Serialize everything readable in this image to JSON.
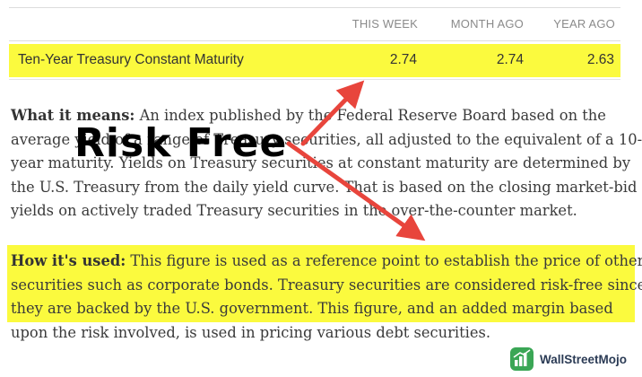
{
  "table": {
    "headers": [
      "THIS WEEK",
      "MONTH AGO",
      "YEAR AGO"
    ],
    "row": {
      "label": "Ten-Year Treasury Constant Maturity",
      "values": [
        "2.74",
        "2.74",
        "2.63"
      ]
    }
  },
  "what_it_means": {
    "heading": "What it means:",
    "lines": [
      " An index published by the Federal Reserve Board based on the",
      "average yield of a range of Treasury securities, all adjusted to the equivalent of a 10-",
      "year maturity. Yields on Treasury securities at constant maturity are determined by",
      "the U.S. Treasury from the daily yield curve. That is based on the closing market-bid",
      "yields on actively traded Treasury securities in the over-the-counter market."
    ]
  },
  "how_its_used": {
    "heading": "How it's used:",
    "lines": [
      " This figure is used as a reference point to establish the price of other",
      "securities such as corporate bonds. Treasury securities are considered risk-free since",
      "they are backed by the U.S. government. This figure, and an added margin based",
      "upon the risk involved, is used in pricing various debt securities."
    ]
  },
  "annotation": {
    "text": "Risk Free",
    "arrow_color": "#e8453c"
  },
  "highlight_color": "#fbfa3e",
  "brand": {
    "name": "WallStreetMojo",
    "logo_color": "#3aa655"
  }
}
